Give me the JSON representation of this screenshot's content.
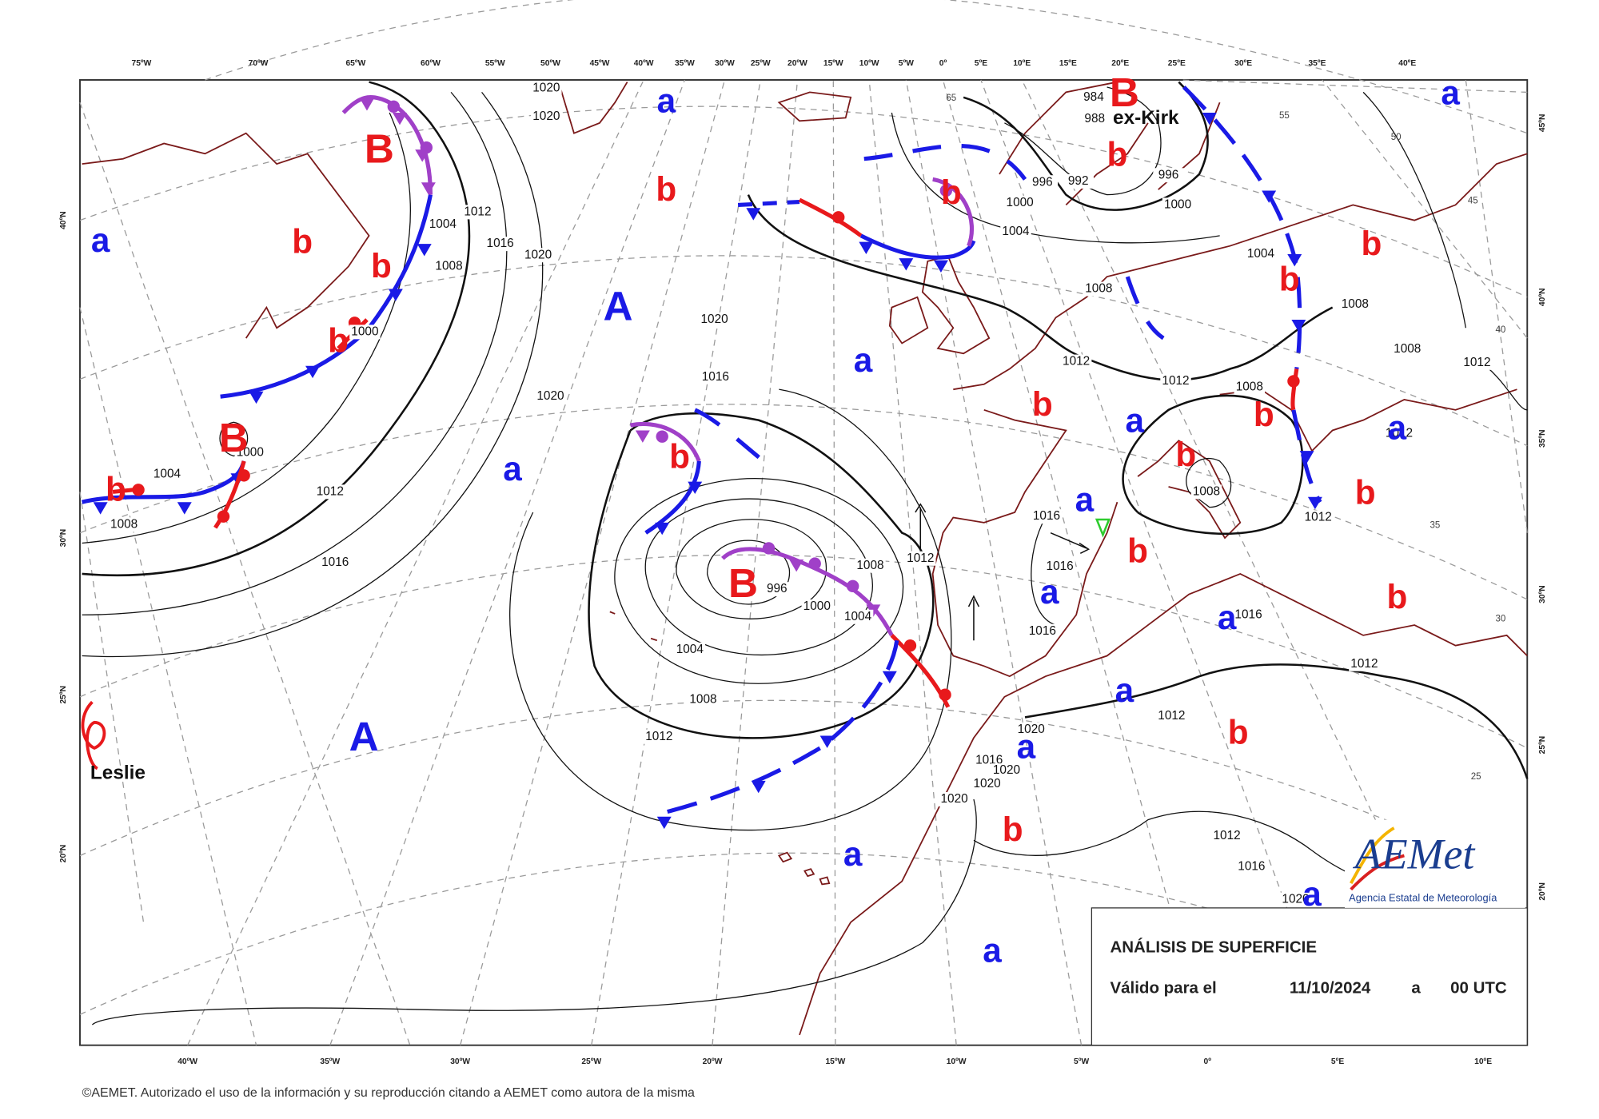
{
  "top_longitude_labels": [
    "75ºW",
    "70ºW",
    "65ºW",
    "60ºW",
    "55ºW",
    "50ºW",
    "45ºW",
    "40ºW",
    "35ºW",
    "30ºW",
    "25ºW",
    "20ºW",
    "15ºW",
    "10ºW",
    "5ºW",
    "0º",
    "5ºE",
    "10ºE",
    "15ºE",
    "20ºE",
    "25ºE",
    "30ºE",
    "35ºE",
    "40ºE"
  ],
  "bottom_longitude_labels": [
    "40ºW",
    "35ºW",
    "30ºW",
    "25ºW",
    "20ºW",
    "15ºW",
    "10ºW",
    "5ºW",
    "0º",
    "5ºE",
    "10ºE"
  ],
  "left_latitude_labels": [
    "40ºN",
    "30ºN",
    "25ºN",
    "20ºN"
  ],
  "right_latitude_labels": [
    "45ºN",
    "40ºN",
    "35ºN",
    "30ºN",
    "25ºN",
    "20ºN"
  ],
  "inner_latitude_labels": [
    "65",
    "55",
    "50",
    "45",
    "40",
    "35",
    "30",
    "25"
  ],
  "pressure_centers": [
    {
      "label": "B",
      "color": "#e8191c"
    },
    {
      "label": "B",
      "color": "#e8191c"
    },
    {
      "label": "B",
      "color": "#e8191c"
    },
    {
      "label": "B",
      "color": "#e8191c"
    },
    {
      "label": "b",
      "color": "#e8191c"
    },
    {
      "label": "b",
      "color": "#e8191c"
    },
    {
      "label": "b",
      "color": "#e8191c"
    },
    {
      "label": "b",
      "color": "#e8191c"
    },
    {
      "label": "b",
      "color": "#e8191c"
    },
    {
      "label": "b",
      "color": "#e8191c"
    },
    {
      "label": "b",
      "color": "#e8191c"
    },
    {
      "label": "b",
      "color": "#e8191c"
    },
    {
      "label": "b",
      "color": "#e8191c"
    },
    {
      "label": "b",
      "color": "#e8191c"
    },
    {
      "label": "b",
      "color": "#e8191c"
    },
    {
      "label": "b",
      "color": "#e8191c"
    },
    {
      "label": "b",
      "color": "#e8191c"
    },
    {
      "label": "b",
      "color": "#e8191c"
    },
    {
      "label": "b",
      "color": "#e8191c"
    },
    {
      "label": "b",
      "color": "#e8191c"
    },
    {
      "label": "b",
      "color": "#e8191c"
    },
    {
      "label": "b",
      "color": "#e8191c"
    },
    {
      "label": "A",
      "color": "#1a1ae6"
    },
    {
      "label": "A",
      "color": "#1a1ae6"
    },
    {
      "label": "a",
      "color": "#1a1ae6"
    },
    {
      "label": "a",
      "color": "#1a1ae6"
    },
    {
      "label": "a",
      "color": "#1a1ae6"
    },
    {
      "label": "a",
      "color": "#1a1ae6"
    },
    {
      "label": "a",
      "color": "#1a1ae6"
    },
    {
      "label": "a",
      "color": "#1a1ae6"
    },
    {
      "label": "a",
      "color": "#1a1ae6"
    },
    {
      "label": "a",
      "color": "#1a1ae6"
    },
    {
      "label": "a",
      "color": "#1a1ae6"
    },
    {
      "label": "a",
      "color": "#1a1ae6"
    },
    {
      "label": "a",
      "color": "#1a1ae6"
    },
    {
      "label": "a",
      "color": "#1a1ae6"
    },
    {
      "label": "a",
      "color": "#1a1ae6"
    },
    {
      "label": "a",
      "color": "#1a1ae6"
    },
    {
      "label": "a",
      "color": "#1a1ae6"
    }
  ],
  "isobar_labels": [
    1020,
    1020,
    984,
    988,
    996,
    992,
    996,
    1000,
    1000,
    1004,
    1004,
    1008,
    1008,
    1008,
    1012,
    1012,
    1012,
    1008,
    1012,
    1012,
    1008,
    1016,
    1016,
    1016,
    1016,
    1012,
    1012,
    1020,
    1016,
    1020,
    1020,
    1020,
    1012,
    1016,
    1020,
    1004,
    1012,
    1016,
    1008,
    1020,
    1020,
    1016,
    1020,
    1000,
    1000,
    1004,
    1008,
    1012,
    1016,
    1012,
    1008,
    1004,
    1000,
    996,
    1004,
    1008,
    1012
  ],
  "storm_names": [
    "ex-Kirk",
    "Leslie"
  ],
  "info_box": {
    "title": "ANÁLISIS DE SUPERFICIE",
    "valid_label": "Válido para el",
    "date": "11/10/2024",
    "at": "a",
    "time": "00 UTC"
  },
  "logo": {
    "mark": "AEMet",
    "text": "Agencia Estatal de Meteorología"
  },
  "copyright": "©AEMET. Autorizado el uso de la información y su reproducción citando a AEMET como autora de la misma"
}
